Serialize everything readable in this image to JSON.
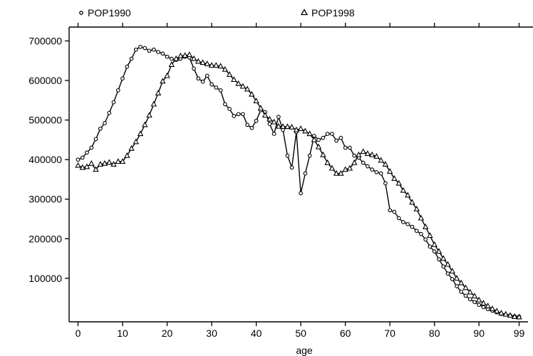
{
  "chart_data": {
    "type": "line",
    "xlabel": "age",
    "ylabel": "",
    "xlim": [
      -2,
      101
    ],
    "ylim": [
      -10000,
      735000
    ],
    "x_ticks": [
      0,
      10,
      20,
      30,
      40,
      50,
      60,
      70,
      80,
      90,
      99
    ],
    "y_ticks": [
      100000,
      200000,
      300000,
      400000,
      500000,
      600000,
      700000
    ],
    "legend_position": "top",
    "grid": false,
    "x": [
      0,
      1,
      2,
      3,
      4,
      5,
      6,
      7,
      8,
      9,
      10,
      11,
      12,
      13,
      14,
      15,
      16,
      17,
      18,
      19,
      20,
      21,
      22,
      23,
      24,
      25,
      26,
      27,
      28,
      29,
      30,
      31,
      32,
      33,
      34,
      35,
      36,
      37,
      38,
      39,
      40,
      41,
      42,
      43,
      44,
      45,
      46,
      47,
      48,
      49,
      50,
      51,
      52,
      53,
      54,
      55,
      56,
      57,
      58,
      59,
      60,
      61,
      62,
      63,
      64,
      65,
      66,
      67,
      68,
      69,
      70,
      71,
      72,
      73,
      74,
      75,
      76,
      77,
      78,
      79,
      80,
      81,
      82,
      83,
      84,
      85,
      86,
      87,
      88,
      89,
      90,
      91,
      92,
      93,
      94,
      95,
      96,
      97,
      98,
      99
    ],
    "series": [
      {
        "name": "POP1990",
        "marker": "circle",
        "values": [
          400000,
          405000,
          418000,
          430000,
          452000,
          478000,
          492000,
          518000,
          545000,
          575000,
          605000,
          635000,
          655000,
          678000,
          685000,
          682000,
          675000,
          678000,
          672000,
          668000,
          660000,
          655000,
          652000,
          655000,
          660000,
          658000,
          630000,
          605000,
          597000,
          612000,
          590000,
          582000,
          575000,
          540000,
          528000,
          510000,
          515000,
          515000,
          488000,
          480000,
          498000,
          525000,
          520000,
          490000,
          465000,
          508000,
          475000,
          410000,
          380000,
          470000,
          315000,
          365000,
          410000,
          460000,
          450000,
          455000,
          465000,
          465000,
          448000,
          455000,
          430000,
          430000,
          410000,
          405000,
          392000,
          383000,
          375000,
          368000,
          365000,
          340000,
          272000,
          268000,
          252000,
          242000,
          237000,
          230000,
          220000,
          212000,
          198000,
          180000,
          168000,
          148000,
          130000,
          112000,
          98000,
          80000,
          66000,
          56000,
          47000,
          40000,
          33000,
          27000,
          22000,
          18000,
          14000,
          10000,
          8000,
          6000,
          4000,
          3000
        ]
      },
      {
        "name": "POP1998",
        "marker": "triangle",
        "values": [
          385000,
          380000,
          382000,
          390000,
          375000,
          388000,
          390000,
          393000,
          388000,
          395000,
          395000,
          410000,
          428000,
          445000,
          465000,
          488000,
          512000,
          540000,
          568000,
          598000,
          612000,
          640000,
          655000,
          662000,
          663000,
          665000,
          655000,
          648000,
          645000,
          642000,
          638000,
          638000,
          636000,
          628000,
          615000,
          602000,
          592000,
          585000,
          578000,
          565000,
          548000,
          530000,
          512000,
          502000,
          495000,
          484000,
          483000,
          483000,
          482000,
          475000,
          478000,
          472000,
          465000,
          450000,
          432000,
          412000,
          392000,
          378000,
          365000,
          365000,
          375000,
          378000,
          392000,
          412000,
          420000,
          415000,
          412000,
          408000,
          398000,
          388000,
          370000,
          352000,
          340000,
          322000,
          310000,
          292000,
          275000,
          252000,
          230000,
          208000,
          185000,
          168000,
          150000,
          135000,
          118000,
          100000,
          88000,
          76000,
          65000,
          55000,
          45000,
          37000,
          30000,
          23000,
          17000,
          12000,
          9000,
          6000,
          3000,
          2000
        ]
      }
    ]
  }
}
